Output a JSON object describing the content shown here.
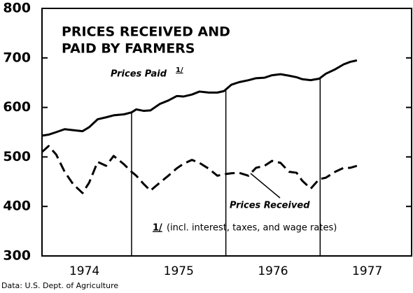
{
  "chart_data": {
    "type": "line",
    "title_lines": [
      "PRICES RECEIVED AND",
      "PAID BY FARMERS"
    ],
    "x": [
      1974.05,
      1974.12,
      1974.2,
      1974.29,
      1974.38,
      1974.48,
      1974.55,
      1974.64,
      1974.73,
      1974.81,
      1974.92,
      1975.0,
      1975.05,
      1975.13,
      1975.2,
      1975.3,
      1975.39,
      1975.48,
      1975.55,
      1975.64,
      1975.72,
      1975.82,
      1975.91,
      1975.98,
      1976.06,
      1976.14,
      1976.24,
      1976.32,
      1976.41,
      1976.49,
      1976.58,
      1976.67,
      1976.75,
      1976.81,
      1976.9,
      1976.99,
      1977.06,
      1977.16,
      1977.25,
      1977.32,
      1977.39
    ],
    "series": [
      {
        "name": "Prices Paid",
        "color": "#000000",
        "dashed": false,
        "values": [
          543,
          545,
          550,
          556,
          554,
          552,
          560,
          576,
          580,
          584,
          586,
          590,
          596,
          593,
          594,
          607,
          614,
          623,
          622,
          626,
          632,
          630,
          630,
          633,
          646,
          651,
          655,
          659,
          660,
          665,
          667,
          664,
          661,
          657,
          655,
          658,
          668,
          677,
          687,
          692,
          695
        ]
      },
      {
        "name": "Prices Received",
        "color": "#000000",
        "dashed": true,
        "values": [
          510,
          522,
          505,
          470,
          445,
          427,
          448,
          490,
          482,
          502,
          485,
          470,
          462,
          445,
          432,
          448,
          462,
          477,
          486,
          494,
          488,
          476,
          462,
          465,
          467,
          468,
          462,
          478,
          482,
          492,
          488,
          470,
          468,
          452,
          436,
          455,
          458,
          470,
          478,
          478,
          482
        ]
      }
    ],
    "footnote_marker": "1/",
    "footnote": "(incl. interest, taxes, and wage rates)",
    "source": "Data:  U.S. Dept. of Agriculture",
    "xlim": [
      1974.05,
      1977.97
    ],
    "xticks": [
      {
        "value": 1974.5,
        "label": "1974"
      },
      {
        "value": 1975.5,
        "label": "1975"
      },
      {
        "value": 1976.5,
        "label": "1976"
      },
      {
        "value": 1977.5,
        "label": "1977"
      }
    ],
    "year_dividers": [
      1975,
      1976,
      1977
    ],
    "ylim": [
      300,
      800
    ],
    "yticks": [
      300,
      400,
      500,
      600,
      700,
      800
    ]
  }
}
